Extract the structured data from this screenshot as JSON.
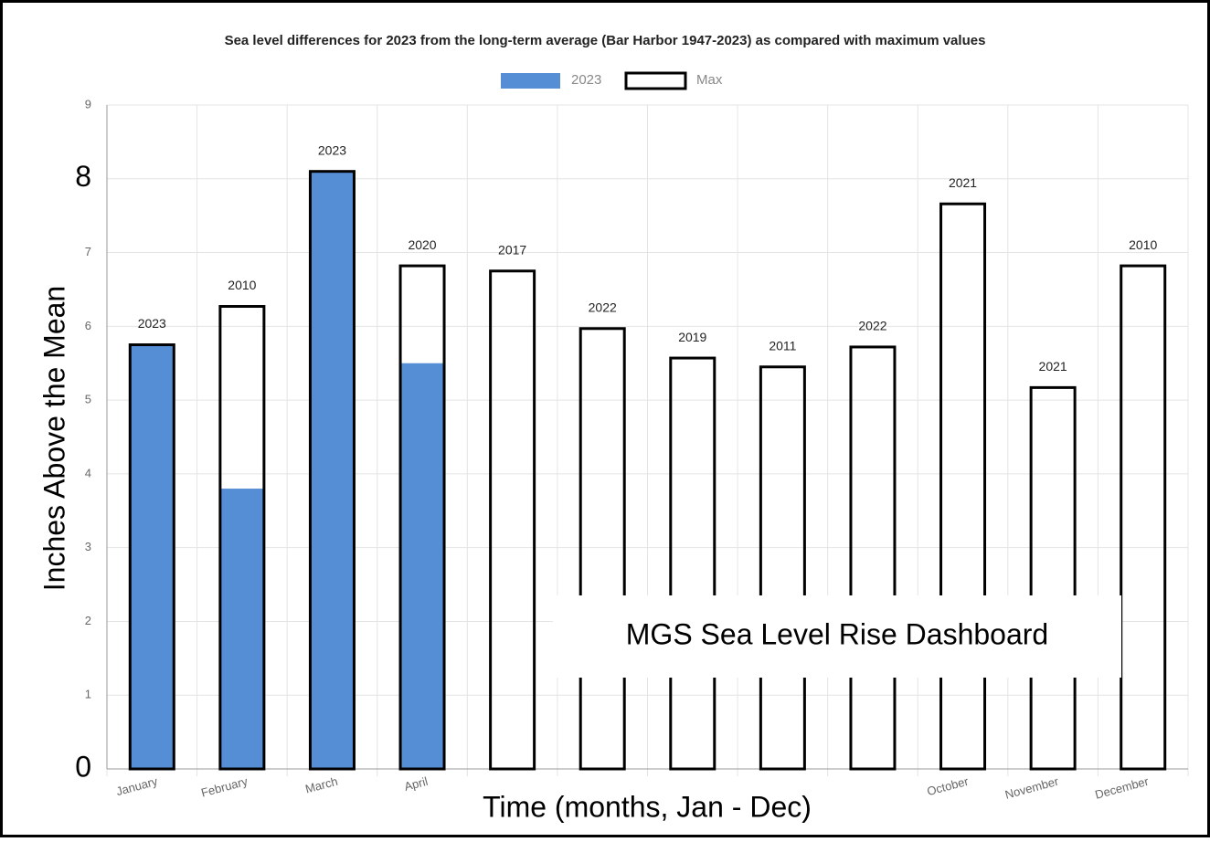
{
  "chart_data": {
    "type": "bar",
    "title": "Sea level differences for 2023 from the long-term average (Bar Harbor 1947-2023) as compared with maximum values",
    "y_label": "Inches Above the Mean",
    "x_label": "Time (months, Jan - Dec)",
    "overlay_title": "MGS Sea Level Rise Dashboard",
    "categories": [
      "January",
      "February",
      "March",
      "April",
      null,
      null,
      null,
      null,
      null,
      "October",
      "November",
      "December"
    ],
    "series": [
      {
        "name": "2023",
        "color": "#558ed5",
        "values": [
          5.75,
          3.8,
          8.1,
          5.5,
          null,
          null,
          null,
          null,
          null,
          null,
          null,
          null
        ]
      },
      {
        "name": "Max",
        "color": "#000000",
        "values": [
          5.75,
          6.27,
          8.1,
          6.82,
          6.75,
          5.97,
          5.57,
          5.45,
          5.72,
          7.66,
          5.17,
          6.82
        ],
        "year_labels": [
          "2023",
          "2010",
          "2023",
          "2020",
          "2017",
          "2022",
          "2019",
          "2011",
          "2022",
          "2021",
          "2021",
          "2010"
        ]
      }
    ],
    "ylim": [
      0,
      9
    ],
    "yticks": [
      0,
      1,
      2,
      3,
      4,
      5,
      6,
      7,
      8,
      9
    ],
    "grid": true,
    "legend": "top"
  }
}
